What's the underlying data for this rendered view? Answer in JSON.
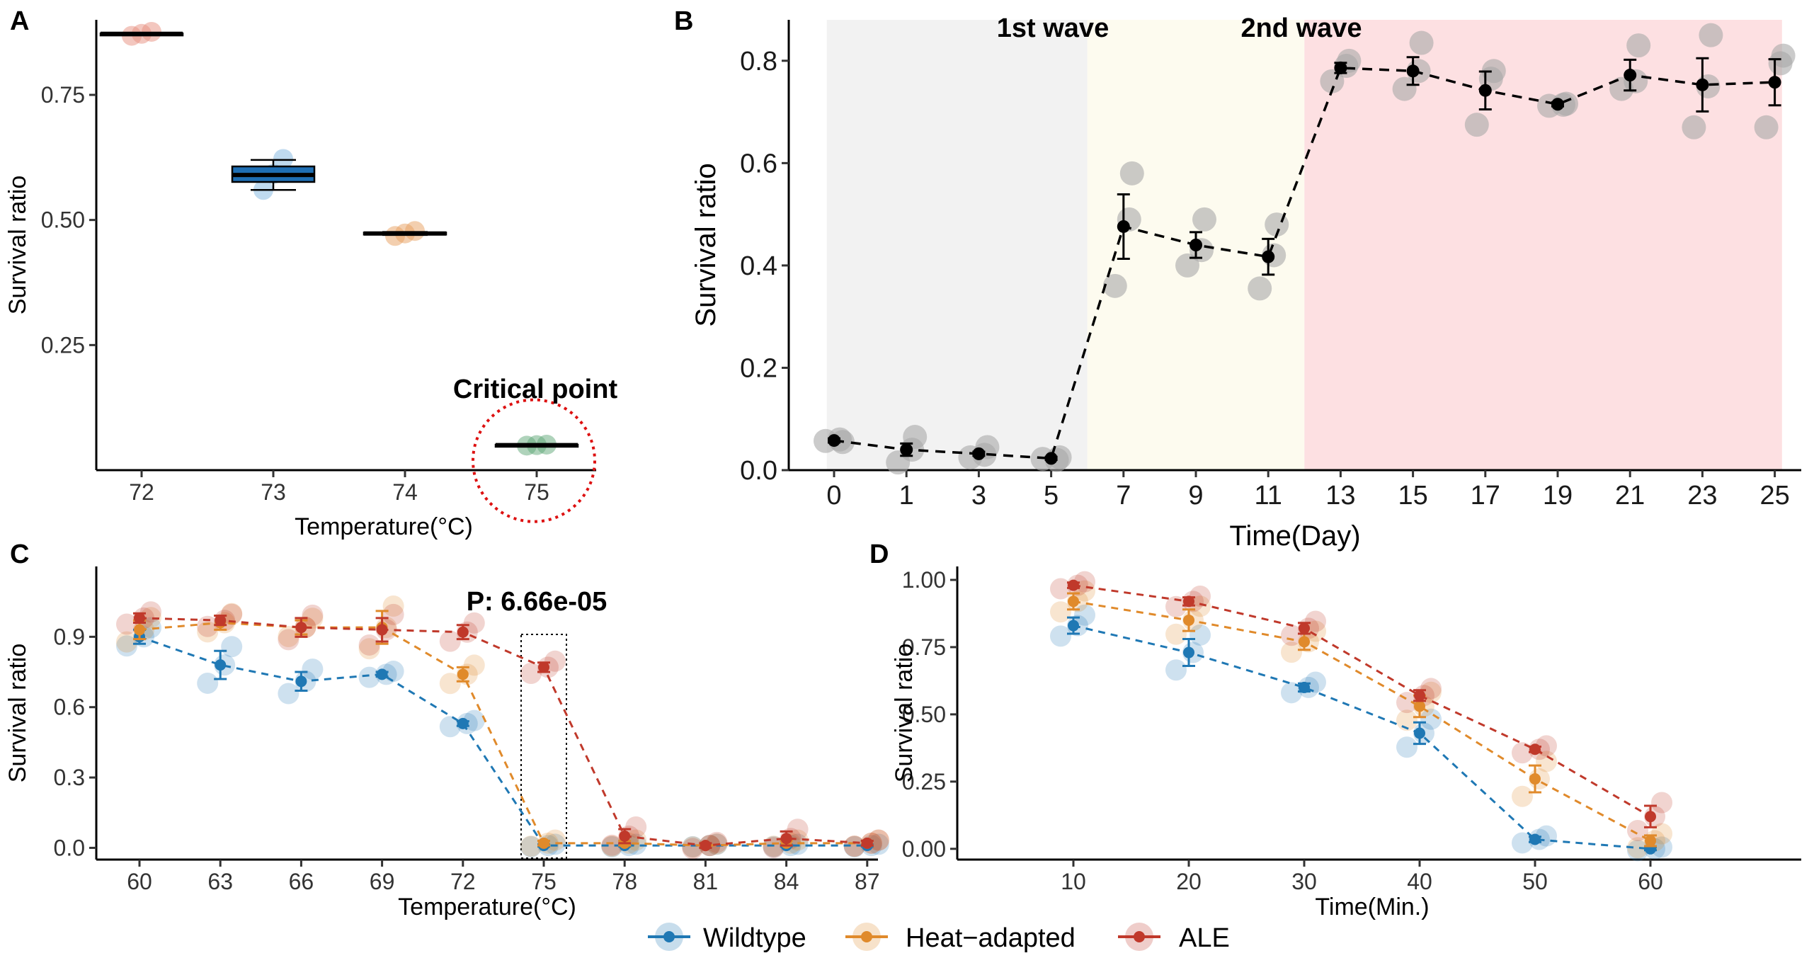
{
  "figure": {
    "width": 2562,
    "height": 1353
  },
  "colors": {
    "wildtype": "#1f78b4",
    "heat_adapted": "#e08a2b",
    "ale": "#c0392b",
    "annotation_red": "#dd1111",
    "annotation_blue": "#1010cc",
    "box_fill": "#1f6fb4",
    "wave0_band": "#f2f2f2",
    "wave1_band": "#fdfbef",
    "wave2_band": "#fde0e2",
    "replicate_gray": "#a8a8a8"
  },
  "chart_data": [
    {
      "panel": "A",
      "type": "box",
      "xlabel": "Temperature(°C)",
      "ylabel": "Survival ratio",
      "categories": [
        "72",
        "73",
        "74",
        "75"
      ],
      "ylim": [
        0,
        0.9
      ],
      "yticks": [
        0.25,
        0.5,
        0.75
      ],
      "ytick_labels": [
        "0.25",
        "0.50",
        "0.75"
      ],
      "boxes": [
        {
          "category": "72",
          "median": 0.872,
          "q1": 0.871,
          "q3": 0.873,
          "whisker_low": 0.871,
          "whisker_high": 0.873,
          "fill": "#ffffff",
          "points": [
            0.868,
            0.872,
            0.876
          ],
          "point_color": "#e8907f"
        },
        {
          "category": "73",
          "median": 0.59,
          "q1": 0.576,
          "q3": 0.607,
          "whisker_low": 0.56,
          "whisker_high": 0.62,
          "fill": "#1f6fb4",
          "points": [
            0.56,
            0.592,
            0.622
          ],
          "point_color": "#7fb6e0"
        },
        {
          "category": "74",
          "median": 0.473,
          "q1": 0.471,
          "q3": 0.475,
          "whisker_low": 0.47,
          "whisker_high": 0.476,
          "fill": "#ffffff",
          "points": [
            0.468,
            0.473,
            0.478
          ],
          "point_color": "#e8a060"
        },
        {
          "category": "75",
          "median": 0.05,
          "q1": 0.049,
          "q3": 0.051,
          "whisker_low": 0.048,
          "whisker_high": 0.052,
          "fill": "#ffffff",
          "points": [
            0.049,
            0.05,
            0.051
          ],
          "point_color": "#5fa878"
        }
      ],
      "annotation": "Critical point"
    },
    {
      "panel": "B",
      "type": "line",
      "xlabel": "Time(Day)",
      "ylabel": "Survival ratio",
      "x": [
        "0",
        "1",
        "3",
        "5",
        "7",
        "9",
        "11",
        "13",
        "15",
        "17",
        "19",
        "21",
        "23",
        "25"
      ],
      "means": [
        0.058,
        0.04,
        0.032,
        0.023,
        0.476,
        0.44,
        0.417,
        0.786,
        0.78,
        0.742,
        0.715,
        0.772,
        0.753,
        0.758
      ],
      "sd": [
        0.004,
        0.012,
        0.004,
        0.003,
        0.063,
        0.025,
        0.035,
        0.01,
        0.027,
        0.037,
        0.004,
        0.03,
        0.052,
        0.045
      ],
      "replicates": [
        [
          0.055,
          0.06,
          0.057
        ],
        [
          0.065,
          0.04,
          0.015
        ],
        [
          0.045,
          0.03,
          0.025
        ],
        [
          0.025,
          0.02,
          0.022
        ],
        [
          0.58,
          0.49,
          0.36
        ],
        [
          0.49,
          0.43,
          0.4
        ],
        [
          0.48,
          0.42,
          0.355
        ],
        [
          0.8,
          0.79,
          0.76
        ],
        [
          0.835,
          0.78,
          0.745
        ],
        [
          0.78,
          0.765,
          0.675
        ],
        [
          0.716,
          0.714,
          0.712
        ],
        [
          0.83,
          0.76,
          0.745
        ],
        [
          0.85,
          0.75,
          0.67
        ],
        [
          0.81,
          0.795,
          0.67
        ]
      ],
      "ylim": [
        0,
        0.88
      ],
      "yticks": [
        0.0,
        0.2,
        0.4,
        0.6,
        0.8
      ],
      "ytick_labels": [
        "0.0",
        "0.2",
        "0.4",
        "0.6",
        "0.8"
      ],
      "bands": [
        {
          "from_index": -0.1,
          "to_index": 3.5,
          "label": ""
        },
        {
          "from_index": 3.5,
          "to_index": 6.5,
          "label": "1st wave"
        },
        {
          "from_index": 6.5,
          "to_index": 13.1,
          "label": "2nd wave"
        }
      ],
      "annotations": [
        "1st wave",
        "2nd wave"
      ]
    },
    {
      "panel": "C",
      "type": "line",
      "xlabel": "Temperature(°C)",
      "ylabel": "Survival ratio",
      "categories": [
        "60",
        "63",
        "66",
        "69",
        "72",
        "75",
        "78",
        "81",
        "84",
        "87"
      ],
      "ylim": [
        -0.05,
        1.2
      ],
      "yticks": [
        0.0,
        0.3,
        0.6,
        0.9
      ],
      "ytick_labels": [
        "0.0",
        "0.3",
        "0.6",
        "0.9"
      ],
      "series": [
        {
          "name": "Wildtype",
          "values": [
            0.9,
            0.78,
            0.71,
            0.74,
            0.53,
            0.01,
            0.01,
            0.01,
            0.01,
            0.01
          ],
          "sd": [
            0.03,
            0.06,
            0.04,
            0.01,
            0.01,
            0.004,
            0.004,
            0.004,
            0.004,
            0.004
          ]
        },
        {
          "name": "Heat-adapted",
          "values": [
            0.93,
            0.96,
            0.94,
            0.94,
            0.74,
            0.02,
            0.02,
            0.01,
            0.02,
            0.02
          ],
          "sd": [
            0.04,
            0.03,
            0.03,
            0.07,
            0.03,
            0.01,
            0.01,
            0.005,
            0.01,
            0.01
          ]
        },
        {
          "name": "ALE",
          "values": [
            0.98,
            0.97,
            0.94,
            0.93,
            0.92,
            0.77,
            0.05,
            0.01,
            0.04,
            0.02
          ],
          "sd": [
            0.02,
            0.02,
            0.04,
            0.05,
            0.03,
            0.02,
            0.03,
            0.01,
            0.03,
            0.01
          ]
        }
      ],
      "annotation": "P: 6.66e-05",
      "highlight_category": "75"
    },
    {
      "panel": "D",
      "type": "line",
      "xlabel": "Time(Min.)",
      "ylabel": "Survival ratio",
      "categories": [
        "10",
        "20",
        "30",
        "40",
        "50",
        "60"
      ],
      "ylim": [
        -0.04,
        1.05
      ],
      "yticks": [
        0.0,
        0.25,
        0.5,
        0.75,
        1.0
      ],
      "ytick_labels": [
        "0.00",
        "0.25",
        "0.50",
        "0.75",
        "1.00"
      ],
      "series": [
        {
          "name": "Wildtype",
          "values": [
            0.83,
            0.73,
            0.6,
            0.43,
            0.035,
            0.0
          ],
          "sd": [
            0.03,
            0.05,
            0.015,
            0.04,
            0.01,
            0.005
          ]
        },
        {
          "name": "Heat-adapted",
          "values": [
            0.92,
            0.85,
            0.77,
            0.53,
            0.26,
            0.03
          ],
          "sd": [
            0.03,
            0.04,
            0.03,
            0.04,
            0.05,
            0.02
          ]
        },
        {
          "name": "ALE",
          "values": [
            0.98,
            0.92,
            0.82,
            0.57,
            0.37,
            0.12
          ],
          "sd": [
            0.01,
            0.015,
            0.02,
            0.02,
            0.01,
            0.04
          ]
        }
      ]
    }
  ],
  "legend": {
    "items": [
      {
        "key": "wildtype",
        "label": "Wildtype"
      },
      {
        "key": "heat_adapted",
        "label": "Heat−adapted"
      },
      {
        "key": "ale",
        "label": "ALE"
      }
    ]
  }
}
